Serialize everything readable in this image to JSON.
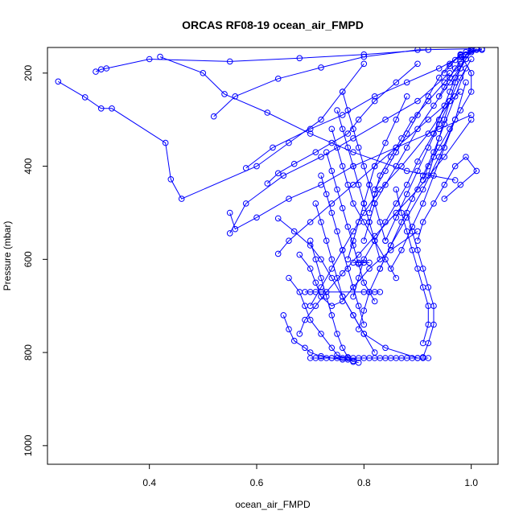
{
  "chart_data": {
    "type": "line",
    "title": "ORCAS RF08-19 ocean_air_FMPD",
    "xlabel": "ocean_air_FMPD",
    "ylabel": "Pressure (mbar)",
    "xlim": [
      0.21,
      1.05
    ],
    "ylim": [
      1040,
      145
    ],
    "y_reversed": true,
    "x_ticks": [
      0.4,
      0.6,
      0.8,
      1.0
    ],
    "x_tick_labels": [
      "0.4",
      "0.6",
      "0.8",
      "1.0"
    ],
    "y_ticks": [
      200,
      400,
      600,
      800,
      1000
    ],
    "y_tick_labels": [
      "200",
      "400",
      "600",
      "800",
      "1000"
    ],
    "grid": false,
    "legend": "none",
    "series_color": "#0000ff",
    "marker": "open-circle",
    "series": [
      {
        "x": [
          0.23,
          0.28,
          0.31,
          0.33,
          0.43,
          0.44,
          0.46,
          0.6,
          0.66,
          0.72,
          0.76,
          0.8
        ],
        "y": [
          218,
          252,
          276,
          276,
          350,
          428,
          470,
          400,
          350,
          300,
          240,
          180
        ]
      },
      {
        "x": [
          0.3,
          0.31,
          0.32,
          0.4,
          0.55,
          0.68,
          0.8,
          0.92
        ],
        "y": [
          197,
          192,
          190,
          170,
          175,
          168,
          160,
          150
        ]
      },
      {
        "x": [
          0.42,
          0.5,
          0.54,
          0.62,
          0.7,
          0.78,
          0.88,
          0.97
        ],
        "y": [
          165,
          200,
          245,
          285,
          330,
          370,
          410,
          430
        ]
      },
      {
        "x": [
          0.52,
          0.56,
          0.64,
          0.72,
          0.8,
          0.9,
          1.0
        ],
        "y": [
          293,
          250,
          212,
          188,
          165,
          150,
          148
        ]
      },
      {
        "x": [
          0.55,
          0.56,
          0.6,
          0.66,
          0.72,
          0.78,
          0.86,
          0.94,
          1.0
        ],
        "y": [
          500,
          535,
          510,
          470,
          440,
          400,
          360,
          320,
          290
        ]
      },
      {
        "x": [
          0.55,
          0.58,
          0.65,
          0.72,
          0.78,
          0.84,
          0.9,
          0.96
        ],
        "y": [
          544,
          480,
          420,
          380,
          340,
          300,
          260,
          200
        ]
      },
      {
        "x": [
          0.58,
          0.63,
          0.7,
          0.76,
          0.82,
          0.88,
          0.94,
          0.98
        ],
        "y": [
          404,
          360,
          320,
          290,
          250,
          220,
          190,
          165
        ]
      },
      {
        "x": [
          0.62,
          0.64,
          0.67,
          0.71,
          0.74,
          0.77,
          0.79,
          0.82,
          0.86,
          0.9
        ],
        "y": [
          437,
          415,
          395,
          370,
          350,
          330,
          300,
          260,
          220,
          180
        ]
      },
      {
        "x": [
          0.64,
          0.66,
          0.7,
          0.74,
          0.78,
          0.82,
          0.86,
          0.92,
          0.98
        ],
        "y": [
          588,
          560,
          520,
          480,
          440,
          400,
          360,
          300,
          240
        ]
      },
      {
        "x": [
          0.64,
          0.67,
          0.7,
          0.72,
          0.74,
          0.76,
          0.78,
          0.8,
          0.84,
          0.9
        ],
        "y": [
          512,
          540,
          570,
          600,
          640,
          680,
          720,
          760,
          790,
          812
        ]
      },
      {
        "x": [
          0.65,
          0.66,
          0.67,
          0.69,
          0.7,
          0.72,
          0.74,
          0.76,
          0.78
        ],
        "y": [
          720,
          750,
          775,
          790,
          800,
          808,
          812,
          815,
          818
        ]
      },
      {
        "x": [
          0.66,
          0.68,
          0.69,
          0.7,
          0.72,
          0.74,
          0.75,
          0.77,
          0.79
        ],
        "y": [
          640,
          670,
          700,
          730,
          760,
          790,
          805,
          815,
          822
        ]
      },
      {
        "x": [
          0.68,
          0.7,
          0.71,
          0.72,
          0.74,
          0.76,
          0.78,
          0.81,
          0.85,
          0.9
        ],
        "y": [
          590,
          620,
          650,
          680,
          700,
          690,
          660,
          620,
          580,
          540
        ]
      },
      {
        "x": [
          0.68,
          0.69,
          0.71,
          0.73,
          0.76,
          0.79,
          0.82,
          0.86,
          0.9,
          0.95,
          1.0
        ],
        "y": [
          760,
          730,
          700,
          670,
          630,
          590,
          550,
          500,
          450,
          380,
          300
        ]
      },
      {
        "x": [
          0.7,
          0.72,
          0.74,
          0.76,
          0.78,
          0.8,
          0.83,
          0.87,
          0.92,
          0.96
        ],
        "y": [
          700,
          660,
          620,
          580,
          540,
          500,
          450,
          400,
          330,
          260
        ]
      },
      {
        "x": [
          0.7,
          0.71,
          0.72,
          0.73,
          0.74,
          0.75,
          0.76,
          0.77,
          0.78
        ],
        "y": [
          560,
          600,
          640,
          680,
          720,
          760,
          790,
          810,
          820
        ]
      },
      {
        "x": [
          0.71,
          0.72,
          0.73,
          0.74,
          0.75,
          0.76,
          0.78,
          0.8,
          0.82
        ],
        "y": [
          480,
          520,
          560,
          600,
          640,
          680,
          720,
          760,
          800
        ]
      },
      {
        "x": [
          0.72,
          0.73,
          0.74,
          0.75,
          0.76,
          0.77,
          0.78,
          0.79,
          0.8
        ],
        "y": [
          420,
          460,
          500,
          540,
          580,
          620,
          660,
          700,
          740
        ]
      },
      {
        "x": [
          0.73,
          0.74,
          0.75,
          0.76,
          0.77,
          0.78,
          0.79,
          0.8,
          0.82
        ],
        "y": [
          370,
          410,
          450,
          490,
          530,
          570,
          610,
          650,
          690
        ]
      },
      {
        "x": [
          0.74,
          0.75,
          0.76,
          0.77,
          0.78,
          0.8,
          0.82,
          0.84,
          0.86
        ],
        "y": [
          320,
          360,
          400,
          440,
          480,
          520,
          560,
          600,
          640
        ]
      },
      {
        "x": [
          0.75,
          0.76,
          0.77,
          0.78,
          0.79,
          0.8,
          0.81,
          0.82,
          0.83
        ],
        "y": [
          280,
          320,
          360,
          400,
          440,
          480,
          520,
          560,
          600
        ]
      },
      {
        "x": [
          0.76,
          0.77,
          0.78,
          0.79,
          0.8,
          0.81,
          0.82,
          0.83,
          0.84
        ],
        "y": [
          240,
          280,
          320,
          360,
          400,
          440,
          480,
          520,
          560
        ]
      },
      {
        "x": [
          0.77,
          0.78,
          0.79,
          0.8,
          0.81,
          0.82,
          0.84,
          0.86,
          0.88
        ],
        "y": [
          600,
          560,
          520,
          480,
          440,
          400,
          350,
          300,
          250
        ]
      },
      {
        "x": [
          0.78,
          0.79,
          0.8,
          0.82,
          0.84,
          0.86,
          0.88,
          0.9,
          0.93
        ],
        "y": [
          680,
          640,
          600,
          560,
          520,
          480,
          440,
          390,
          330
        ]
      },
      {
        "x": [
          0.79,
          0.8,
          0.81,
          0.83,
          0.85,
          0.88,
          0.91,
          0.94,
          0.97
        ],
        "y": [
          750,
          710,
          670,
          620,
          570,
          510,
          450,
          380,
          300
        ]
      },
      {
        "x": [
          0.8,
          0.81,
          0.82,
          0.84,
          0.86,
          0.88,
          0.9,
          0.93,
          0.96,
          0.99
        ],
        "y": [
          560,
          520,
          480,
          440,
          400,
          360,
          320,
          270,
          220,
          170
        ]
      },
      {
        "x": [
          0.81,
          0.82,
          0.83,
          0.85,
          0.87,
          0.89,
          0.92,
          0.95,
          0.98
        ],
        "y": [
          500,
          460,
          420,
          380,
          340,
          300,
          260,
          220,
          180
        ]
      },
      {
        "x": [
          0.82,
          0.84,
          0.86,
          0.88,
          0.9,
          0.92,
          0.94,
          0.96,
          0.98
        ],
        "y": [
          450,
          410,
          370,
          330,
          290,
          250,
          210,
          180,
          160
        ]
      },
      {
        "x": [
          0.83,
          0.85,
          0.87,
          0.89,
          0.91,
          0.93,
          0.95,
          0.97,
          0.99
        ],
        "y": [
          620,
          570,
          520,
          470,
          420,
          370,
          310,
          250,
          190
        ]
      },
      {
        "x": [
          0.84,
          0.86,
          0.88,
          0.9,
          0.92,
          0.94,
          0.96,
          0.98,
          1.0
        ],
        "y": [
          560,
          510,
          460,
          410,
          360,
          310,
          260,
          210,
          170
        ]
      },
      {
        "x": [
          0.85,
          0.87,
          0.89,
          0.91,
          0.93,
          0.95,
          0.97,
          0.99
        ],
        "y": [
          620,
          580,
          530,
          480,
          420,
          360,
          300,
          220
        ]
      },
      {
        "x": [
          0.86,
          0.87,
          0.88,
          0.89,
          0.9,
          0.91,
          0.92,
          0.92,
          0.91
        ],
        "y": [
          450,
          500,
          540,
          580,
          620,
          660,
          700,
          740,
          780
        ]
      },
      {
        "x": [
          0.88,
          0.89,
          0.9,
          0.91,
          0.92,
          0.93,
          0.93,
          0.92,
          0.91
        ],
        "y": [
          500,
          540,
          580,
          620,
          660,
          700,
          740,
          780,
          810
        ]
      },
      {
        "x": [
          0.9,
          0.91,
          0.93,
          0.95,
          0.97,
          0.99,
          1.01,
          0.98,
          0.95
        ],
        "y": [
          560,
          520,
          480,
          440,
          400,
          380,
          410,
          440,
          470
        ]
      },
      {
        "x": [
          0.91,
          0.92,
          0.94,
          0.96,
          0.98,
          1.0,
          1.0,
          0.98
        ],
        "y": [
          430,
          400,
          360,
          320,
          280,
          240,
          200,
          160
        ]
      },
      {
        "x": [
          0.92,
          0.93,
          0.94,
          0.95,
          0.96,
          0.97,
          0.98,
          0.99,
          1.0
        ],
        "y": [
          420,
          380,
          340,
          300,
          260,
          220,
          190,
          160,
          150
        ]
      },
      {
        "x": [
          0.93,
          0.94,
          0.95,
          0.96,
          0.97,
          0.98,
          0.99,
          1.0,
          1.01
        ],
        "y": [
          330,
          300,
          270,
          240,
          210,
          190,
          170,
          155,
          148
        ]
      },
      {
        "x": [
          0.94,
          0.95,
          0.96,
          0.97,
          0.98,
          0.99,
          1.0,
          1.01,
          1.02
        ],
        "y": [
          250,
          230,
          210,
          190,
          175,
          162,
          155,
          150,
          148
        ]
      },
      {
        "x": [
          0.95,
          0.96,
          0.97,
          0.98,
          0.99,
          1.0,
          1.02
        ],
        "y": [
          200,
          185,
          172,
          162,
          155,
          152,
          150
        ]
      }
    ],
    "bottom_cluster": {
      "y": 812,
      "x": [
        0.7,
        0.71,
        0.72,
        0.73,
        0.74,
        0.75,
        0.76,
        0.77,
        0.78,
        0.79,
        0.8,
        0.81,
        0.82,
        0.83,
        0.84,
        0.85,
        0.86,
        0.87,
        0.88,
        0.89,
        0.9,
        0.91,
        0.92
      ]
    },
    "plateau_600": {
      "y": 607,
      "x": [
        0.78,
        0.79,
        0.8,
        0.81
      ]
    },
    "plateau_670": {
      "y": 670,
      "x": [
        0.69,
        0.7,
        0.71,
        0.72,
        0.8,
        0.81,
        0.82,
        0.83
      ]
    }
  }
}
